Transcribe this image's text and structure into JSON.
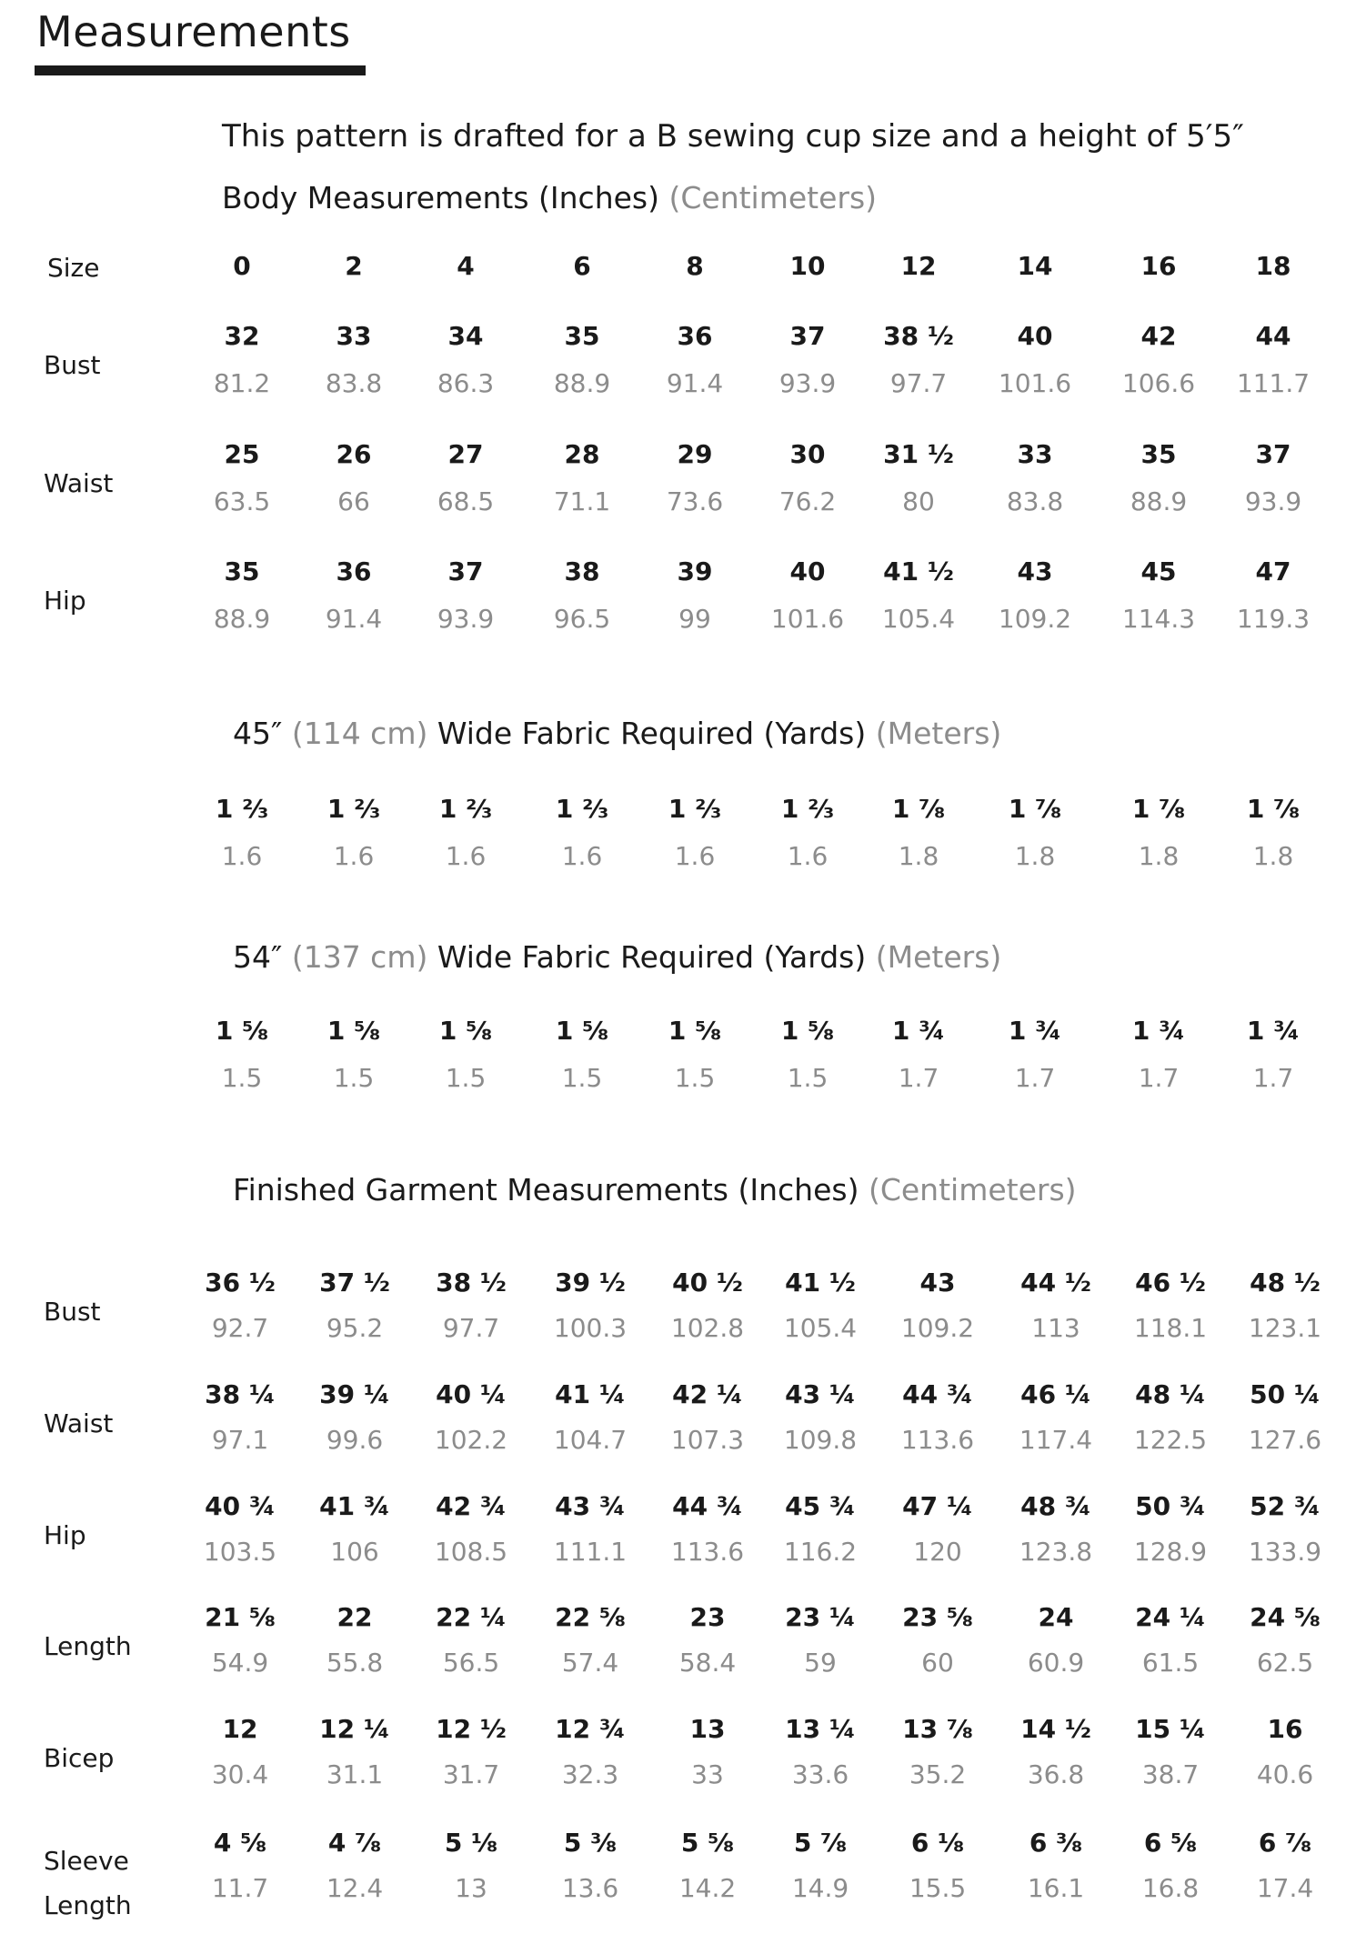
{
  "title": "Measurements",
  "intro": "This pattern is drafted for a B sewing cup size and a height of 5′5″",
  "body": {
    "heading": "Body Measurements (Inches)",
    "heading_metric": "(Centimeters)",
    "size_label": "Size",
    "sizes": [
      "0",
      "2",
      "4",
      "6",
      "8",
      "10",
      "12",
      "14",
      "16",
      "18"
    ],
    "rows": [
      {
        "label": "Bust",
        "inches": [
          "32",
          "33",
          "34",
          "35",
          "36",
          "37",
          "38 ½",
          "40",
          "42",
          "44"
        ],
        "cm": [
          "81.2",
          "83.8",
          "86.3",
          "88.9",
          "91.4",
          "93.9",
          "97.7",
          "101.6",
          "106.6",
          "111.7"
        ]
      },
      {
        "label": "Waist",
        "inches": [
          "25",
          "26",
          "27",
          "28",
          "29",
          "30",
          "31 ½",
          "33",
          "35",
          "37"
        ],
        "cm": [
          "63.5",
          "66",
          "68.5",
          "71.1",
          "73.6",
          "76.2",
          "80",
          "83.8",
          "88.9",
          "93.9"
        ]
      },
      {
        "label": "Hip",
        "inches": [
          "35",
          "36",
          "37",
          "38",
          "39",
          "40",
          "41 ½",
          "43",
          "45",
          "47"
        ],
        "cm": [
          "88.9",
          "91.4",
          "93.9",
          "96.5",
          "99",
          "101.6",
          "105.4",
          "109.2",
          "114.3",
          "119.3"
        ]
      }
    ]
  },
  "fabric45": {
    "width": "45″",
    "width_metric": "(114 cm)",
    "heading": "Wide Fabric Required (Yards)",
    "heading_metric": "(Meters)",
    "yards": [
      "1 ⅔",
      "1 ⅔",
      "1 ⅔",
      "1 ⅔",
      "1 ⅔",
      "1 ⅔",
      "1 ⅞",
      "1 ⅞",
      "1 ⅞",
      "1 ⅞"
    ],
    "meters": [
      "1.6",
      "1.6",
      "1.6",
      "1.6",
      "1.6",
      "1.6",
      "1.8",
      "1.8",
      "1.8",
      "1.8"
    ]
  },
  "fabric54": {
    "width": "54″",
    "width_metric": "(137 cm)",
    "heading": "Wide Fabric Required (Yards)",
    "heading_metric": "(Meters)",
    "yards": [
      "1 ⅝",
      "1 ⅝",
      "1 ⅝",
      "1 ⅝",
      "1 ⅝",
      "1 ⅝",
      "1 ¾",
      "1 ¾",
      "1 ¾",
      "1 ¾"
    ],
    "meters": [
      "1.5",
      "1.5",
      "1.5",
      "1.5",
      "1.5",
      "1.5",
      "1.7",
      "1.7",
      "1.7",
      "1.7"
    ]
  },
  "finished": {
    "heading": "Finished Garment Measurements (Inches)",
    "heading_metric": "(Centimeters)",
    "rows": [
      {
        "label": "Bust",
        "inches": [
          "36 ½",
          "37 ½",
          "38 ½",
          "39 ½",
          "40 ½",
          "41 ½",
          "43",
          "44 ½",
          "46 ½",
          "48 ½"
        ],
        "cm": [
          "92.7",
          "95.2",
          "97.7",
          "100.3",
          "102.8",
          "105.4",
          "109.2",
          "113",
          "118.1",
          "123.1"
        ]
      },
      {
        "label": "Waist",
        "inches": [
          "38 ¼",
          "39 ¼",
          "40 ¼",
          "41 ¼",
          "42 ¼",
          "43 ¼",
          "44 ¾",
          "46 ¼",
          "48 ¼",
          "50 ¼"
        ],
        "cm": [
          "97.1",
          "99.6",
          "102.2",
          "104.7",
          "107.3",
          "109.8",
          "113.6",
          "117.4",
          "122.5",
          "127.6"
        ]
      },
      {
        "label": "Hip",
        "inches": [
          "40 ¾",
          "41 ¾",
          "42 ¾",
          "43 ¾",
          "44 ¾",
          "45 ¾",
          "47 ¼",
          "48 ¾",
          "50 ¾",
          "52 ¾"
        ],
        "cm": [
          "103.5",
          "106",
          "108.5",
          "111.1",
          "113.6",
          "116.2",
          "120",
          "123.8",
          "128.9",
          "133.9"
        ]
      },
      {
        "label": "Length",
        "inches": [
          "21 ⅝",
          "22",
          "22 ¼",
          "22 ⅝",
          "23",
          "23 ¼",
          "23 ⅝",
          "24",
          "24 ¼",
          "24 ⅝"
        ],
        "cm": [
          "54.9",
          "55.8",
          "56.5",
          "57.4",
          "58.4",
          "59",
          "60",
          "60.9",
          "61.5",
          "62.5"
        ]
      },
      {
        "label": "Bicep",
        "inches": [
          "12",
          "12 ¼",
          "12 ½",
          "12 ¾",
          "13",
          "13 ¼",
          "13 ⅞",
          "14 ½",
          "15 ¼",
          "16"
        ],
        "cm": [
          "30.4",
          "31.1",
          "31.7",
          "32.3",
          "33",
          "33.6",
          "35.2",
          "36.8",
          "38.7",
          "40.6"
        ]
      },
      {
        "label": "Sleeve",
        "label2": "Length",
        "inches": [
          "4 ⅝",
          "4 ⅞",
          "5 ⅛",
          "5 ⅜",
          "5 ⅝",
          "5 ⅞",
          "6 ⅛",
          "6 ⅜",
          "6 ⅝",
          "6 ⅞"
        ],
        "cm": [
          "11.7",
          "12.4",
          "13",
          "13.6",
          "14.2",
          "14.9",
          "15.5",
          "16.1",
          "16.8",
          "17.4"
        ]
      }
    ]
  }
}
